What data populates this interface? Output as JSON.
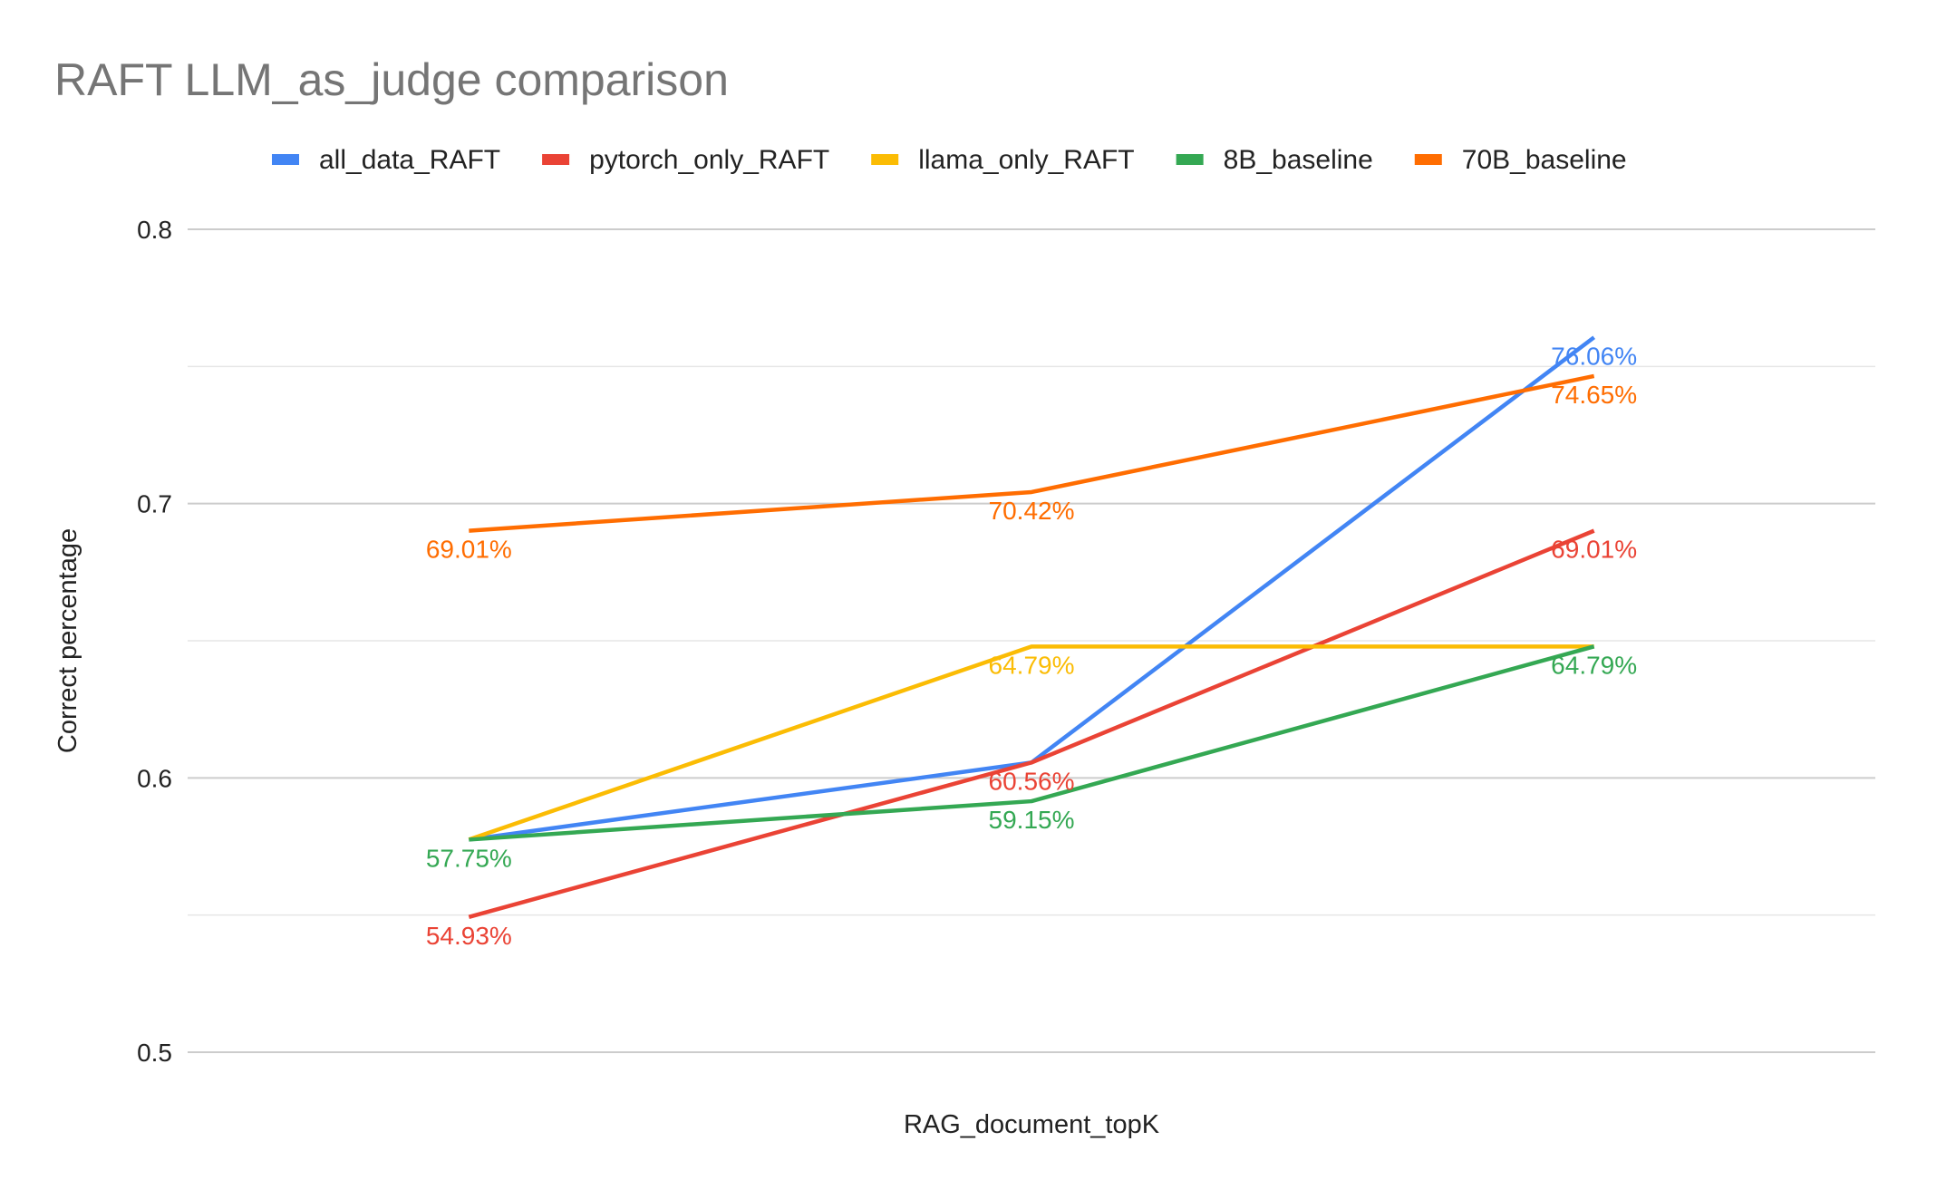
{
  "chart_data": {
    "type": "line",
    "title": "RAFT LLM_as_judge comparison",
    "xlabel": "RAG_document_topK",
    "ylabel": "Correct percentage",
    "categories": [
      "",
      "",
      ""
    ],
    "ylim": [
      0.5,
      0.8
    ],
    "yticks": [
      "0.5",
      "0.6",
      "0.7",
      "0.8"
    ],
    "grid": true,
    "legend_position": "top",
    "series": [
      {
        "name": "all_data_RAFT",
        "color": "#4285F4",
        "values": [
          0.5775,
          0.6056,
          0.7606
        ],
        "labels": [
          null,
          null,
          "76.06%"
        ]
      },
      {
        "name": "pytorch_only_RAFT",
        "color": "#EA4335",
        "values": [
          0.5493,
          0.6056,
          0.6901
        ],
        "labels": [
          "54.93%",
          "60.56%",
          "69.01%"
        ]
      },
      {
        "name": "llama_only_RAFT",
        "color": "#FBBC04",
        "values": [
          0.5775,
          0.6479,
          0.6479
        ],
        "labels": [
          null,
          "64.79%",
          null
        ]
      },
      {
        "name": "8B_baseline",
        "color": "#34A853",
        "values": [
          0.5775,
          0.5915,
          0.6479
        ],
        "labels": [
          "57.75%",
          "59.15%",
          "64.79%"
        ]
      },
      {
        "name": "70B_baseline",
        "color": "#FF6D01",
        "values": [
          0.6901,
          0.7042,
          0.7465
        ],
        "labels": [
          "69.01%",
          "70.42%",
          "74.65%"
        ]
      }
    ]
  }
}
